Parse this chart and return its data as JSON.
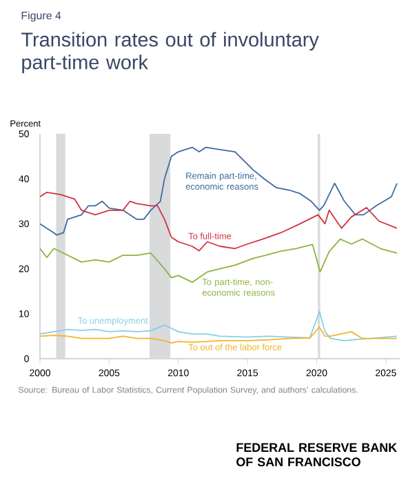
{
  "chart_data": {
    "type": "line",
    "subtitle": "Figure 4",
    "title": "Transition rates out of involuntary part-time work",
    "ylabel": "Percent",
    "xlim": [
      2000,
      2026
    ],
    "ylim": [
      0,
      50
    ],
    "xticks": [
      2000,
      2005,
      2010,
      2015,
      2020,
      2025
    ],
    "yticks": [
      0,
      10,
      20,
      30,
      40,
      50
    ],
    "grid": false,
    "legend": false,
    "bands": [
      {
        "axis": "x",
        "from": 2001.17,
        "to": 2001.83,
        "color": "#d9dadc"
      },
      {
        "axis": "x",
        "from": 2007.92,
        "to": 2009.42,
        "color": "#d9dadc"
      },
      {
        "axis": "x",
        "from": 2020.08,
        "to": 2020.25,
        "color": "#d9dadc"
      }
    ],
    "series": [
      {
        "name": "Remain part-time, economic reasons",
        "color": "#3d6a9e",
        "x": [
          2000,
          2000.5,
          2001,
          2001.2,
          2001.7,
          2002,
          2003,
          2003.5,
          2004,
          2004.5,
          2005,
          2006,
          2007,
          2007.5,
          2008,
          2008.7,
          2009,
          2009.5,
          2010,
          2011,
          2011.5,
          2012,
          2013,
          2014.1,
          2015.4,
          2016.2,
          2017.1,
          2018,
          2018.8,
          2019.6,
          2020.2,
          2020.5,
          2021.3,
          2022,
          2022.8,
          2023.4,
          2024.3,
          2025.4,
          2025.8
        ],
        "values": [
          30,
          29,
          28,
          27.5,
          28,
          31,
          32,
          34,
          34,
          35,
          33.5,
          33,
          31,
          31,
          33,
          35,
          40,
          45,
          46,
          47,
          46,
          47,
          46.5,
          46,
          42,
          40,
          38,
          37.5,
          36.7,
          35,
          33,
          34,
          39,
          35,
          32,
          32,
          34,
          36,
          39
        ]
      },
      {
        "name": "To full-time",
        "color": "#d3323f",
        "x": [
          2000,
          2000.5,
          2001.5,
          2002.5,
          2003,
          2004,
          2005,
          2006,
          2006.5,
          2007,
          2008,
          2008.5,
          2009,
          2009.5,
          2010,
          2011,
          2011.5,
          2012.1,
          2013,
          2014.1,
          2015,
          2016.1,
          2017.4,
          2018.8,
          2020.1,
          2020.6,
          2020.9,
          2021.8,
          2022.5,
          2023.6,
          2024.5,
          2025.8
        ],
        "values": [
          36,
          37,
          36.5,
          35.5,
          33,
          32,
          33,
          33,
          35,
          34.5,
          34,
          34,
          31,
          27,
          26,
          25,
          24,
          26,
          25,
          24.5,
          25.5,
          26.6,
          28,
          30,
          32,
          30,
          33,
          29,
          31.5,
          33.6,
          30.6,
          29
        ]
      },
      {
        "name": "To part-time, non-economic reasons",
        "color": "#8db43c",
        "x": [
          2000,
          2000.5,
          2001,
          2002,
          2003,
          2004,
          2005,
          2006,
          2007,
          2008,
          2009,
          2009.5,
          2010,
          2011,
          2012.1,
          2013,
          2014.1,
          2015.4,
          2016.3,
          2017.4,
          2018.5,
          2019.7,
          2020.25,
          2020.9,
          2021.7,
          2022.5,
          2023.3,
          2024.6,
          2025.8
        ],
        "values": [
          24.5,
          22.5,
          24.5,
          23,
          21.5,
          22,
          21.5,
          23,
          23,
          23.5,
          20,
          18,
          18.5,
          17,
          19.3,
          20,
          20.8,
          22.3,
          23,
          23.9,
          24.5,
          25.4,
          19.3,
          23.8,
          26.6,
          25.5,
          26.6,
          24.5,
          23.5
        ]
      },
      {
        "name": "To unemployment",
        "color": "#86cfe6",
        "x": [
          2000,
          2001,
          2002,
          2003,
          2004,
          2005,
          2006,
          2007,
          2008,
          2009,
          2010,
          2011,
          2012,
          2013,
          2015,
          2016.5,
          2018,
          2019.5,
          2020.2,
          2020.6,
          2021,
          2022,
          2023,
          2024,
          2025.8
        ],
        "values": [
          5.5,
          6,
          6.5,
          6.3,
          6.5,
          6,
          6.2,
          6,
          6.2,
          7.5,
          6,
          5.5,
          5.5,
          5,
          4.8,
          5,
          4.8,
          4.6,
          10.5,
          6,
          4.5,
          4,
          4.3,
          4.5,
          5
        ]
      },
      {
        "name": "To out of the labor force",
        "color": "#f2b52a",
        "x": [
          2000,
          2001,
          2002,
          2003,
          2004,
          2005,
          2006,
          2007,
          2008,
          2009,
          2009.5,
          2010,
          2011,
          2012,
          2013,
          2015,
          2016.5,
          2018,
          2019.5,
          2020.2,
          2020.6,
          2021,
          2022.5,
          2023.3,
          2024,
          2025.8
        ],
        "values": [
          5,
          5.2,
          5,
          4.5,
          4.5,
          4.5,
          5,
          4.5,
          4.5,
          4,
          3.5,
          3.8,
          3.7,
          3.8,
          4,
          4,
          4.2,
          4.5,
          4.6,
          7,
          5,
          5,
          6,
          4.5,
          4.5,
          4.5
        ]
      }
    ],
    "annotations": [
      "Source: Bureau of Labor Statistics, Current Population Survey, and authors’ calculations.",
      "FEDERAL RESERVE BANK OF SAN FRANCISCO"
    ]
  }
}
